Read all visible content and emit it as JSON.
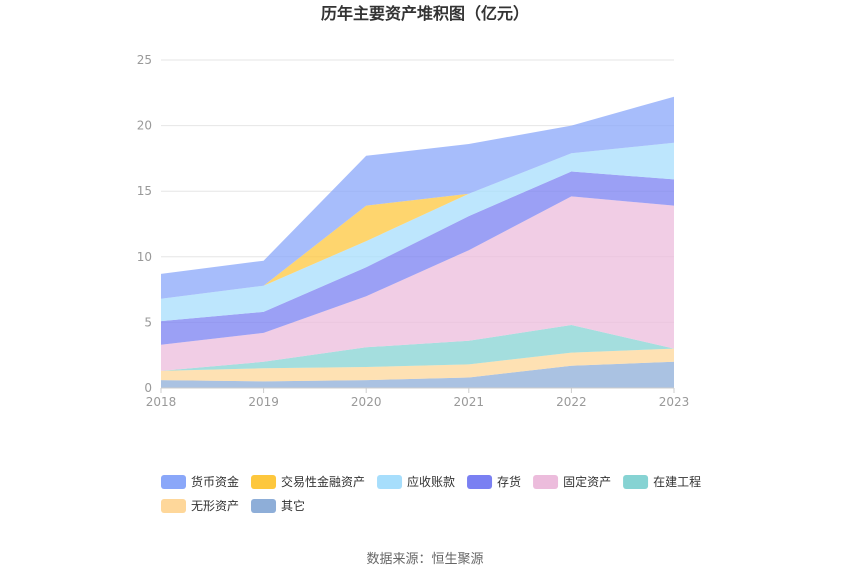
{
  "chart_data": {
    "type": "area",
    "stacked": true,
    "title": "历年主要资产堆积图（亿元）",
    "categories": [
      "2018",
      "2019",
      "2020",
      "2021",
      "2022",
      "2023"
    ],
    "y_ticks": [
      "0",
      "5",
      "10",
      "15",
      "20",
      "25"
    ],
    "ylim": [
      0,
      25
    ],
    "grid": true,
    "legend_position": "bottom",
    "series": [
      {
        "name": "其它",
        "color": "#8eaed8",
        "values": [
          0.6,
          0.5,
          0.6,
          0.8,
          1.7,
          2.0
        ]
      },
      {
        "name": "无形资产",
        "color": "#fed79a",
        "values": [
          0.7,
          1.0,
          1.0,
          1.0,
          1.0,
          1.0
        ]
      },
      {
        "name": "在建工程",
        "color": "#86d3d3",
        "values": [
          0.0,
          0.5,
          1.5,
          1.8,
          2.1,
          0.0
        ]
      },
      {
        "name": "固定资产",
        "color": "#ecbcdc",
        "values": [
          2.0,
          2.2,
          3.9,
          6.9,
          9.8,
          10.9
        ]
      },
      {
        "name": "存货",
        "color": "#7a80f2",
        "values": [
          1.8,
          1.6,
          2.2,
          2.6,
          1.9,
          2.0
        ]
      },
      {
        "name": "应收账款",
        "color": "#a7defc",
        "values": [
          1.7,
          2.0,
          2.0,
          1.7,
          1.4,
          2.8
        ]
      },
      {
        "name": "交易性金融资产",
        "color": "#fdc73d",
        "values": [
          0.0,
          0.0,
          2.7,
          0.0,
          0.0,
          0.0
        ]
      },
      {
        "name": "货币资金",
        "color": "#8aa7f9",
        "values": [
          1.9,
          1.9,
          3.8,
          3.8,
          2.1,
          3.5
        ]
      }
    ],
    "legend_order": [
      "货币资金",
      "交易性金融资产",
      "应收账款",
      "存货",
      "固定资产",
      "在建工程",
      "无形资产",
      "其它"
    ]
  },
  "source_text": "数据来源：恒生聚源"
}
